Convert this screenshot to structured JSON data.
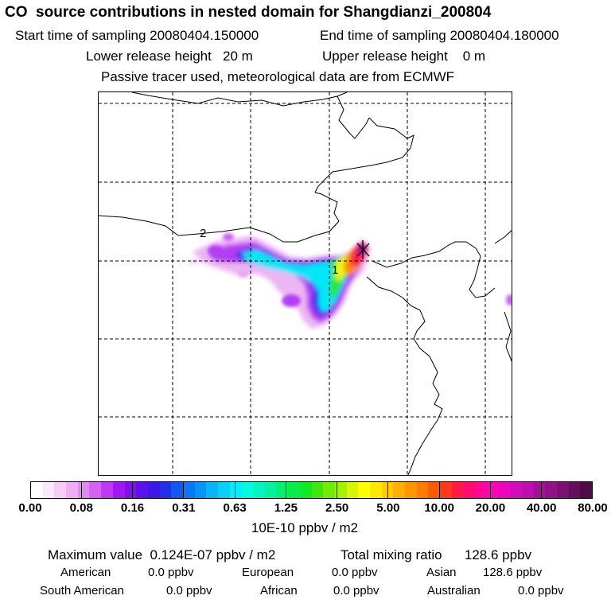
{
  "header": {
    "title": "CO  source contributions in nested domain for Shangdianzi_200804",
    "start_label": "Start time of sampling 20080404.150000",
    "end_label": "End time of sampling 20080404.180000",
    "lower_height": "Lower release height   20 m",
    "upper_height": "Upper release height    0 m",
    "note": "Passive tracer used, meteorological data are from ECMWF"
  },
  "map": {
    "markers": [
      "1",
      "2"
    ],
    "colors": {
      "coastline": "#000000",
      "grid": "#000000"
    }
  },
  "colorbar": {
    "tick_labels": [
      "0.00",
      "0.08",
      "0.16",
      "0.31",
      "0.63",
      "1.25",
      "2.50",
      "5.00",
      "10.00",
      "20.00",
      "40.00",
      "80.00"
    ],
    "segment_colors": [
      "#ffffff",
      "#fbe8fb",
      "#f5cdf7",
      "#eeb0f4",
      "#e388f2",
      "#d462f4",
      "#bf38f6",
      "#a016f4",
      "#7f10ee",
      "#5b12ea",
      "#3b18e8",
      "#2130e6",
      "#1258ef",
      "#0878f4",
      "#0896f6",
      "#08b6f8",
      "#06d2f8",
      "#05eef8",
      "#07f8e2",
      "#07f4c0",
      "#06f29a",
      "#05ef72",
      "#07ec4a",
      "#12e824",
      "#3ee80c",
      "#72ec06",
      "#a6f006",
      "#d6f606",
      "#ffff00",
      "#ffe800",
      "#ffcc00",
      "#ffb000",
      "#ff9600",
      "#ff7c00",
      "#ff5a00",
      "#ff3818",
      "#ff1a44",
      "#ff0e70",
      "#ff0898",
      "#f806b6",
      "#e808c0",
      "#d20cb8",
      "#bc0eac",
      "#a80e9c",
      "#921088",
      "#7a1072",
      "#620e5c",
      "#4c0c48"
    ],
    "unit": "10E-10 ppbv / m2"
  },
  "summary": {
    "max_label": "Maximum value  0.124E-07 ppbv / m2",
    "total_label": "Total mixing ratio      128.6 ppbv",
    "american": "American",
    "american_value": "0.0 ppbv",
    "european": "European",
    "european_value": "0.0 ppbv",
    "asian": "Asian",
    "asian_value": "128.6 ppbv",
    "south_american": "South American",
    "south_american_value": "0.0 ppbv",
    "african": "African",
    "african_value": "0.0 ppbv",
    "australian": "Australian",
    "australian_value": "0.0 ppbv"
  }
}
